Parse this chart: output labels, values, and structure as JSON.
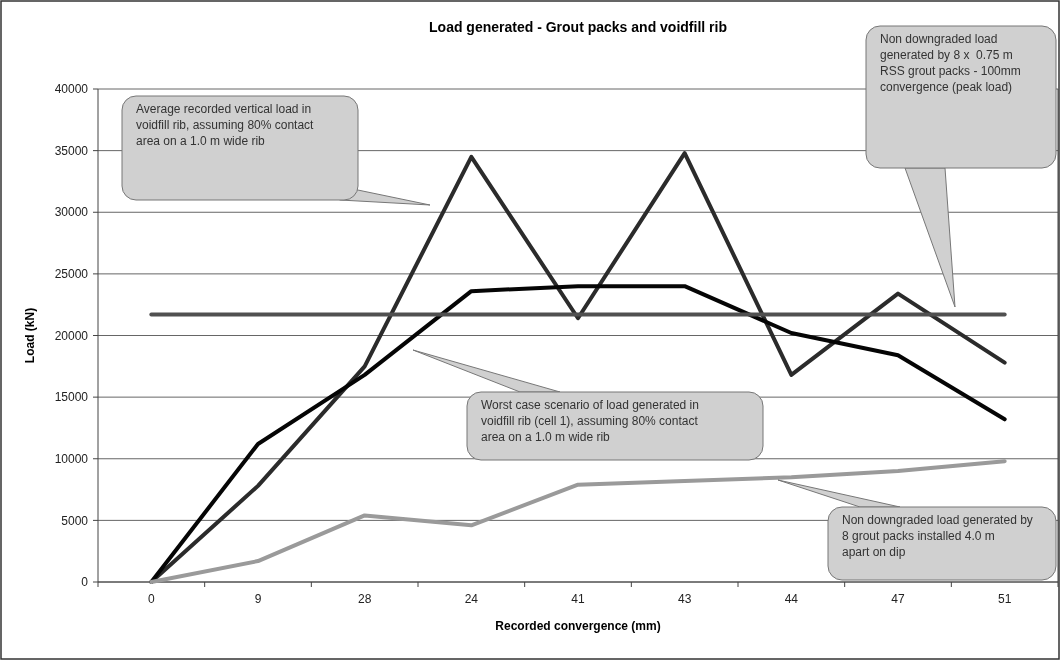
{
  "chart_data": {
    "type": "line",
    "title": "Load generated - Grout packs and voidfill rib",
    "xlabel": "Recorded convergence (mm)",
    "ylabel": "Load (kN)",
    "categories": [
      "0",
      "9",
      "28",
      "24",
      "41",
      "43",
      "44",
      "47",
      "51"
    ],
    "ylim": [
      0,
      40000
    ],
    "yticks": [
      0,
      5000,
      10000,
      15000,
      20000,
      25000,
      30000,
      35000,
      40000
    ],
    "grid": "y",
    "marker": "none",
    "line_style": "solid",
    "series": [
      {
        "color": "#2b2b2b",
        "values": [
          0,
          7800,
          17500,
          34500,
          21400,
          34800,
          16800,
          23400,
          17800
        ]
      },
      {
        "color": "#050505",
        "values": [
          0,
          11200,
          16800,
          23600,
          24000,
          24000,
          20200,
          18400,
          13200
        ]
      },
      {
        "color": "#505050",
        "values": [
          21700,
          21700,
          21700,
          21700,
          21700,
          21700,
          21700,
          21700,
          21700
        ]
      },
      {
        "color": "#9a9a9a",
        "values": [
          0,
          1700,
          5400,
          4600,
          7900,
          8200,
          8500,
          9000,
          9800
        ]
      }
    ],
    "annotations": [
      "Average recorded vertical load in voidfill rib, assuming 80% contact area on a 1.0 m wide rib",
      "Worst case scenario of load generated in voidfill rib (cell 1), assuming 80% contact area on a 1.0 m wide rib",
      "Non downgraded load generated by 8 x  0.75 m RSS grout packs - 100mm convergence (peak load)",
      "Non downgraded load generated by 8 grout packs installed 4.0 m apart on dip"
    ]
  }
}
